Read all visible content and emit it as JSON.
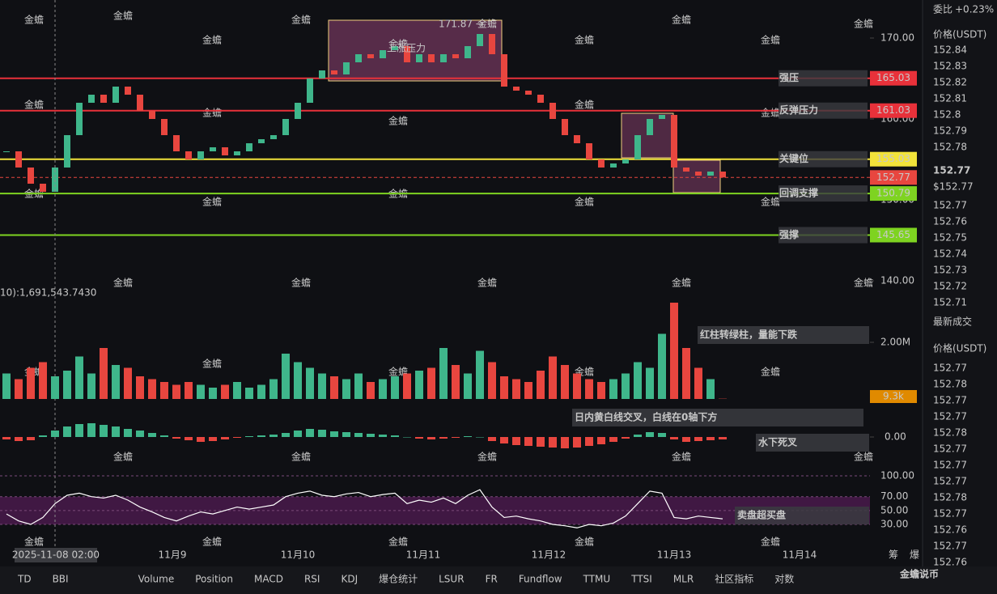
{
  "price_chart": {
    "ylim": [
      139.7,
      174.7
    ],
    "yticks": [
      {
        "value": 140,
        "label": "140.00"
      },
      {
        "value": 150,
        "label": "150.00"
      },
      {
        "value": 160,
        "label": "160.00"
      },
      {
        "value": 170,
        "label": "170.00"
      }
    ],
    "closes": [
      156,
      154,
      152,
      151,
      154,
      158,
      162,
      163,
      162,
      164,
      163,
      161,
      160,
      158,
      156,
      155,
      156,
      156.5,
      155.5,
      156,
      157,
      157.5,
      158,
      160,
      162,
      165,
      166,
      165.5,
      167,
      168,
      167.5,
      168.5,
      169,
      167,
      168,
      167,
      168,
      167.5,
      169,
      170.5,
      168,
      164,
      163.5,
      163,
      162,
      160,
      158,
      157,
      155,
      154,
      154.5,
      155,
      158,
      160,
      160.5,
      154,
      153.5,
      153,
      153.5,
      152.77
    ],
    "categories": [
      "11月9",
      "11月10",
      "11月11",
      "11月12",
      "11月13",
      "11月14"
    ],
    "crosshair_time": "2025-11-08 02:00",
    "levels": [
      {
        "name": "强压",
        "value": 165.03,
        "color": "#e8313a"
      },
      {
        "name": "反弹压力",
        "value": 161.03,
        "color": "#e8313a"
      },
      {
        "name": "关键位",
        "value": 155.03,
        "color": "#f2e33a"
      },
      {
        "name": "回调支撑",
        "value": 150.79,
        "color": "#7ed321"
      },
      {
        "name": "强撑",
        "value": 145.65,
        "color": "#7ed321"
      }
    ],
    "current": 152.77,
    "watermark": "金蟾"
  },
  "volume": {
    "header": "10):1,691,543.7430",
    "ylim": [
      0,
      3800000
    ],
    "yticks": [
      {
        "value": 2000000,
        "label": "2.00M"
      }
    ],
    "last_label": "9.3k",
    "values": [
      900000,
      700000,
      1100000,
      1300000,
      800000,
      1000000,
      1500000,
      900000,
      1800000,
      1200000,
      1100000,
      800000,
      700000,
      600000,
      500000,
      600000,
      500000,
      400000,
      500000,
      600000,
      400000,
      500000,
      700000,
      1600000,
      1300000,
      1100000,
      900000,
      800000,
      700000,
      900000,
      600000,
      700000,
      800000,
      900000,
      1000000,
      1100000,
      1800000,
      1200000,
      900000,
      1700000,
      1300000,
      800000,
      700000,
      600000,
      1000000,
      1500000,
      1200000,
      900000,
      700000,
      600000,
      700000,
      900000,
      1300000,
      1100000,
      2300000,
      3400000,
      1800000,
      1100000,
      700000,
      9300
    ]
  },
  "macd": {
    "ylim": [
      -4,
      4
    ],
    "yticks": [
      {
        "value": 0,
        "label": "0.00"
      }
    ],
    "hist": [
      -0.3,
      -0.5,
      -0.4,
      0.2,
      0.8,
      1.3,
      1.6,
      1.7,
      1.5,
      1.3,
      1.0,
      0.8,
      0.5,
      0.2,
      -0.2,
      -0.4,
      -0.6,
      -0.5,
      -0.3,
      -0.1,
      0.1,
      0.2,
      0.3,
      0.5,
      0.8,
      1.0,
      0.9,
      0.7,
      0.6,
      0.5,
      0.4,
      0.3,
      0.2,
      0.0,
      -0.2,
      -0.3,
      -0.2,
      -0.1,
      0.1,
      0.0,
      -0.5,
      -0.8,
      -1.0,
      -1.1,
      -1.2,
      -1.3,
      -1.4,
      -1.3,
      -1.1,
      -0.9,
      -0.6,
      -0.2,
      0.3,
      0.6,
      0.5,
      -0.3,
      -0.6,
      -0.5,
      -0.4,
      -0.3
    ]
  },
  "rsi": {
    "ylim": [
      0,
      100
    ],
    "yticks": [
      {
        "value": 100,
        "label": "100.00"
      },
      {
        "value": 70,
        "label": "70.00"
      },
      {
        "value": 50,
        "label": "50.00"
      },
      {
        "value": 30,
        "label": "30.00"
      }
    ],
    "values": [
      45,
      35,
      30,
      40,
      60,
      72,
      75,
      70,
      68,
      72,
      65,
      55,
      48,
      40,
      35,
      42,
      48,
      45,
      50,
      55,
      52,
      55,
      58,
      70,
      75,
      78,
      72,
      70,
      74,
      76,
      70,
      73,
      75,
      60,
      65,
      62,
      68,
      60,
      72,
      80,
      55,
      40,
      42,
      38,
      35,
      30,
      28,
      25,
      30,
      28,
      32,
      42,
      60,
      78,
      75,
      40,
      38,
      42,
      40,
      38
    ]
  },
  "annotations": {
    "rise_pressure": "上涨压力",
    "high_label": "171.87 →",
    "volume_note": "红柱转绿柱，量能下跌",
    "macd_note": "日内黄白线交叉，白线在0轴下方",
    "macd_cross": "水下死叉",
    "rsi_note": "卖盘超买盘",
    "axis_icons": [
      "筹",
      "爆"
    ]
  },
  "order_book": {
    "ratio_label": "委比",
    "ratio": "+0.23%",
    "price_header": "价格(USDT)",
    "asks": [
      152.84,
      152.83,
      152.82,
      152.81,
      152.8,
      152.79,
      152.78
    ],
    "last": 152.77,
    "last_usd": "$152.77",
    "bids": [
      152.77,
      152.76,
      152.75,
      152.74,
      152.73,
      152.72,
      152.71
    ],
    "trades_title": "最新成交",
    "trades": [
      {
        "price": 152.77,
        "color": "red"
      },
      {
        "price": 152.78,
        "color": "green"
      },
      {
        "price": 152.77,
        "color": "red"
      },
      {
        "price": 152.77,
        "color": "red"
      },
      {
        "price": 152.78,
        "color": "green"
      },
      {
        "price": 152.77,
        "color": "red"
      },
      {
        "price": 152.77,
        "color": "red"
      },
      {
        "price": 152.77,
        "color": "red"
      },
      {
        "price": 152.78,
        "color": "green"
      },
      {
        "price": 152.77,
        "color": "green"
      },
      {
        "price": 152.76,
        "color": "red"
      },
      {
        "price": 152.77,
        "color": "green"
      },
      {
        "price": 152.76,
        "color": "red"
      }
    ]
  },
  "toolbar": {
    "items": [
      {
        "label": "TD",
        "active": false
      },
      {
        "label": "BBI",
        "active": false
      },
      {
        "label": "Volume",
        "active": true
      },
      {
        "label": "Position",
        "active": false
      },
      {
        "label": "MACD",
        "active": true
      },
      {
        "label": "RSI",
        "active": true
      },
      {
        "label": "KDJ",
        "active": false
      },
      {
        "label": "爆仓统计",
        "active": false
      },
      {
        "label": "LSUR",
        "active": false
      },
      {
        "label": "FR",
        "active": false
      },
      {
        "label": "Fundflow",
        "active": false
      },
      {
        "label": "TTMU",
        "active": false
      },
      {
        "label": "TTSI",
        "active": false
      },
      {
        "label": "MLR",
        "active": false
      },
      {
        "label": "社区指标",
        "active": false
      },
      {
        "label": "对数",
        "active": false
      }
    ],
    "brand": "金蟾说币"
  }
}
